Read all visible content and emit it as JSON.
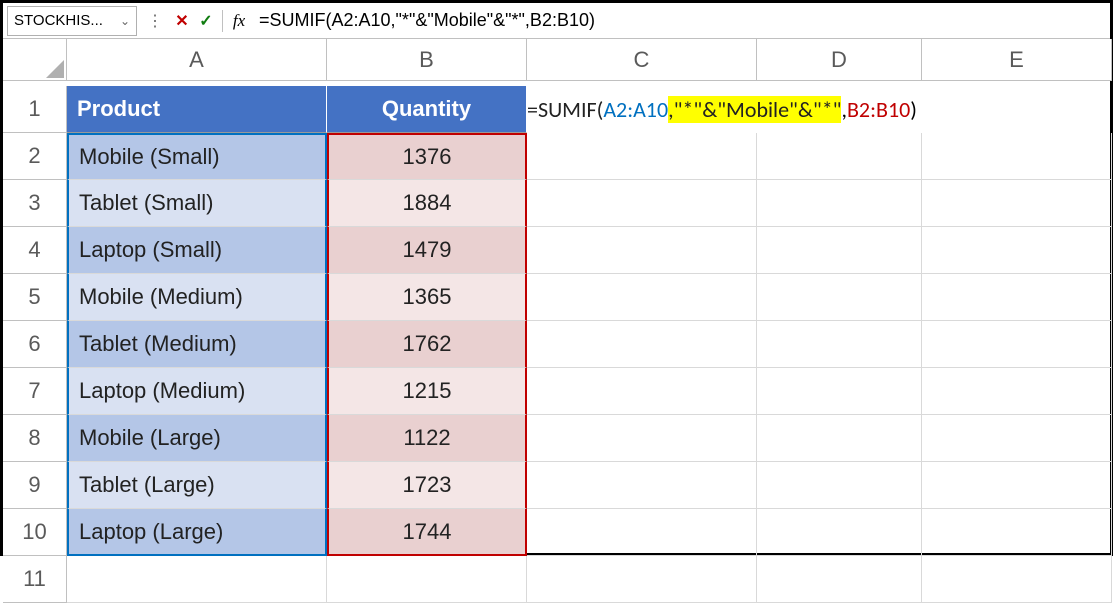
{
  "formula_bar": {
    "name_box": "STOCKHIS...",
    "formula": "=SUMIF(A2:A10,\"*\"&\"Mobile\"&\"*\",B2:B10)"
  },
  "columns": [
    "A",
    "B",
    "C",
    "D",
    "E"
  ],
  "headers": {
    "product": "Product",
    "quantity": "Quantity"
  },
  "rows": [
    {
      "n": 1
    },
    {
      "n": 2,
      "product": "Mobile (Small)",
      "quantity": 1376
    },
    {
      "n": 3,
      "product": "Tablet (Small)",
      "quantity": 1884
    },
    {
      "n": 4,
      "product": "Laptop (Small)",
      "quantity": 1479
    },
    {
      "n": 5,
      "product": "Mobile (Medium)",
      "quantity": 1365
    },
    {
      "n": 6,
      "product": "Tablet (Medium)",
      "quantity": 1762
    },
    {
      "n": 7,
      "product": "Laptop (Medium)",
      "quantity": 1215
    },
    {
      "n": 8,
      "product": "Mobile (Large)",
      "quantity": 1122
    },
    {
      "n": 9,
      "product": "Tablet (Large)",
      "quantity": 1723
    },
    {
      "n": 10,
      "product": "Laptop (Large)",
      "quantity": 1744
    },
    {
      "n": 11
    }
  ],
  "formula_parts": {
    "prefix": "=SUMIF(",
    "range_a": "A2:A10",
    "sep1": ",",
    "criteria": "\"*\"&\"Mobile\"&\"*\"",
    "sep2": ",",
    "range_b": "B2:B10",
    "suffix": ")"
  },
  "colors": {
    "header_bg": "#4472c4",
    "col_a_odd": "#b4c6e7",
    "col_a_even": "#d9e1f2",
    "col_b_odd": "#e9d0d0",
    "col_b_even": "#f4e6e6",
    "range_a_border": "#0070c0",
    "range_b_border": "#c00000",
    "highlight": "#ffff00"
  }
}
